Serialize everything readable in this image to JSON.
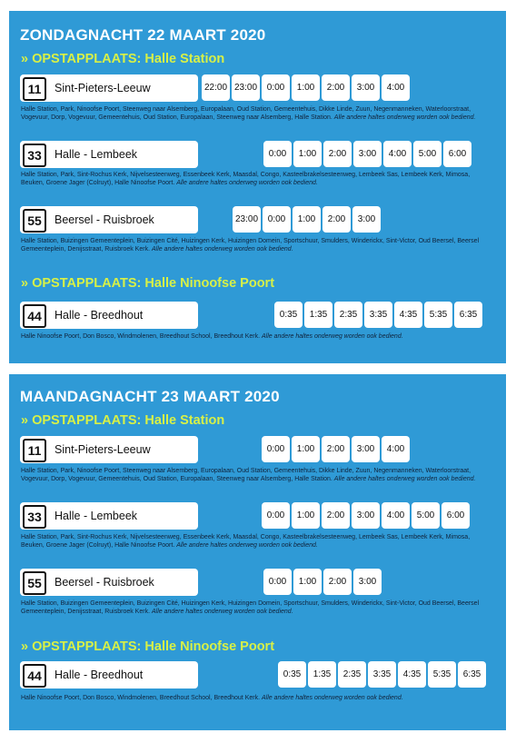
{
  "panels": [
    {
      "title": "ZONDAGNACHT 22 MAART 2020",
      "sections": [
        {
          "stop_label": "» OPSTAPPLAATS: Halle Station",
          "routes": [
            {
              "number": "11",
              "name": "Sint-Pieters-Leeuw",
              "times": [
                "22:00",
                "23:00",
                "0:00",
                "1:00",
                "2:00",
                "3:00",
                "4:00"
              ],
              "stops": "Halle Station, Park, Ninoofse Poort, Steenweg naar Alsemberg, Europalaan, Oud Station, Gemeentehuis, Dikke Linde, Zuun, Negenmanneken, Waterloorstraat, Vogevuur, Dorp, Vogevuur, Gemeentehuis, Oud Station, Europalaan, Steenweg naar Alsemberg, Halle Station.",
              "note": "Alle andere haltes onderweg worden ook bediend."
            },
            {
              "number": "33",
              "name": "Halle - Lembeek",
              "times": [
                "0:00",
                "1:00",
                "2:00",
                "3:00",
                "4:00",
                "5:00",
                "6:00"
              ],
              "stops": "Halle Station, Park, Sint-Rochus Kerk, Nijvelsesteenweg, Essenbeek Kerk, Maasdal, Congo, Kasteelbrakelsesteenweg, Lembeek Sas, Lembeek Kerk, Mimosa, Beuken, Groene Jager (Colruyt), Halle Ninoofse Poort.",
              "note": "Alle andere haltes onderweg worden ook bediend."
            },
            {
              "number": "55",
              "name": "Beersel - Ruisbroek",
              "times": [
                "23:00",
                "0:00",
                "1:00",
                "2:00",
                "3:00"
              ],
              "stops": "Halle Station, Buizingen Gemeenteplein, Buizingen Cité, Huizingen Kerk, Huizingen Domein, Sportschuur, Smulders, Winderickx, Sint-Victor, Oud Beersel, Beersel Gemeenteplein, Denijsstraat, Ruisbroek Kerk.",
              "note": "Alle andere haltes onderweg worden ook bediend."
            }
          ]
        },
        {
          "stop_label": "» OPSTAPPLAATS: Halle Ninoofse Poort",
          "routes": [
            {
              "number": "44",
              "name": "Halle - Breedhout",
              "times": [
                "0:35",
                "1:35",
                "2:35",
                "3:35",
                "4:35",
                "5:35",
                "6:35"
              ],
              "stops": "Halle Ninoofse Poort, Don Bosco, Windmolenen, Breedhout School, Breedhout Kerk.",
              "note": "Alle andere haltes onderweg worden ook bediend."
            }
          ]
        }
      ]
    },
    {
      "title": "MAANDAGNACHT 23 MAART 2020",
      "sections": [
        {
          "stop_label": "» OPSTAPPLAATS: Halle Station",
          "routes": [
            {
              "number": "11",
              "name": "Sint-Pieters-Leeuw",
              "times": [
                "0:00",
                "1:00",
                "2:00",
                "3:00",
                "4:00"
              ],
              "stops": "Halle Station, Park, Ninoofse Poort, Steenweg naar Alsemberg, Europalaan, Oud Station, Gemeentehuis, Dikke Linde, Zuun, Negenmanneken, Waterloorstraat, Vogevuur, Dorp, Vogevuur, Gemeentehuis, Oud Station, Europalaan, Steenweg naar Alsemberg, Halle Station.",
              "note": "Alle andere haltes onderweg worden ook bediend."
            },
            {
              "number": "33",
              "name": "Halle - Lembeek",
              "times": [
                "0:00",
                "1:00",
                "2:00",
                "3:00",
                "4:00",
                "5:00",
                "6:00"
              ],
              "stops": "Halle Station, Park, Sint-Rochus Kerk, Nijvelsesteenweg, Essenbeek Kerk, Maasdal, Congo, Kasteelbrakelsesteenweg, Lembeek Sas, Lembeek Kerk, Mimosa, Beuken, Groene Jager (Colruyt), Halle Ninoofse Poort.",
              "note": "Alle andere haltes onderweg worden ook bediend."
            },
            {
              "number": "55",
              "name": "Beersel - Ruisbroek",
              "times": [
                "0:00",
                "1:00",
                "2:00",
                "3:00"
              ],
              "stops": "Halle Station, Buizingen Gemeenteplein, Buizingen Cité, Huizingen Kerk, Huizingen Domein, Sportschuur, Smulders, Winderickx, Sint-Victor, Oud Beersel, Beersel Gemeenteplein, Denijsstraat, Ruisbroek Kerk.",
              "note": "Alle andere haltes onderweg worden ook bediend."
            }
          ]
        },
        {
          "stop_label": "» OPSTAPPLAATS: Halle Ninoofse Poort",
          "routes": [
            {
              "number": "44",
              "name": "Halle - Breedhout",
              "times": [
                "0:35",
                "1:35",
                "2:35",
                "3:35",
                "4:35",
                "5:35",
                "6:35"
              ],
              "stops": "Halle Ninoofse Poort, Don Bosco, Windmolenen, Breedhout School, Breedhout Kerk.",
              "note": "Alle andere haltes onderweg worden ook bediend."
            }
          ]
        }
      ]
    }
  ],
  "colors": {
    "panel_background": "#2f9ad6",
    "stop_label": "#d7f047",
    "title_text": "#ffffff",
    "box_background": "#ffffff"
  }
}
